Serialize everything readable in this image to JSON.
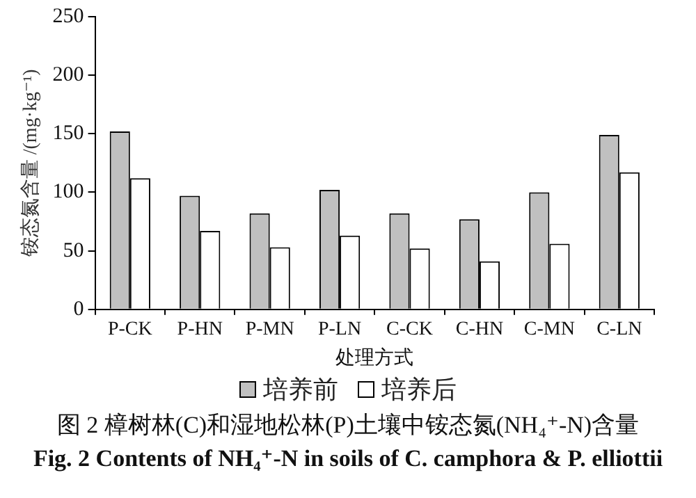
{
  "chart_data": {
    "type": "bar",
    "xlabel": "处理方式",
    "ylabel": "铵态氮含量 /(mg·kg⁻¹)",
    "categories": [
      "P-CK",
      "P-HN",
      "P-MN",
      "P-LN",
      "C-CK",
      "C-HN",
      "C-MN",
      "C-LN"
    ],
    "series": [
      {
        "name": "培养前",
        "color": "#c0c0c0",
        "values": [
          152,
          97,
          82,
          102,
          82,
          77,
          100,
          149
        ]
      },
      {
        "name": "培养后",
        "color": "#ffffff",
        "values": [
          112,
          67,
          53,
          63,
          52,
          41,
          56,
          117
        ]
      }
    ],
    "ylim": [
      0,
      250
    ],
    "yticks": [
      0,
      50,
      100,
      150,
      200,
      250
    ],
    "grid": false,
    "legend": "bottom",
    "annotations": [
      "图 2  樟树林(C)和湿地松林(P)土壤中铵态氮(NH₄⁺-N)含量",
      "Fig. 2   Contents of NH₄⁺-N in soils of C. camphora  & P. elliottii"
    ]
  }
}
